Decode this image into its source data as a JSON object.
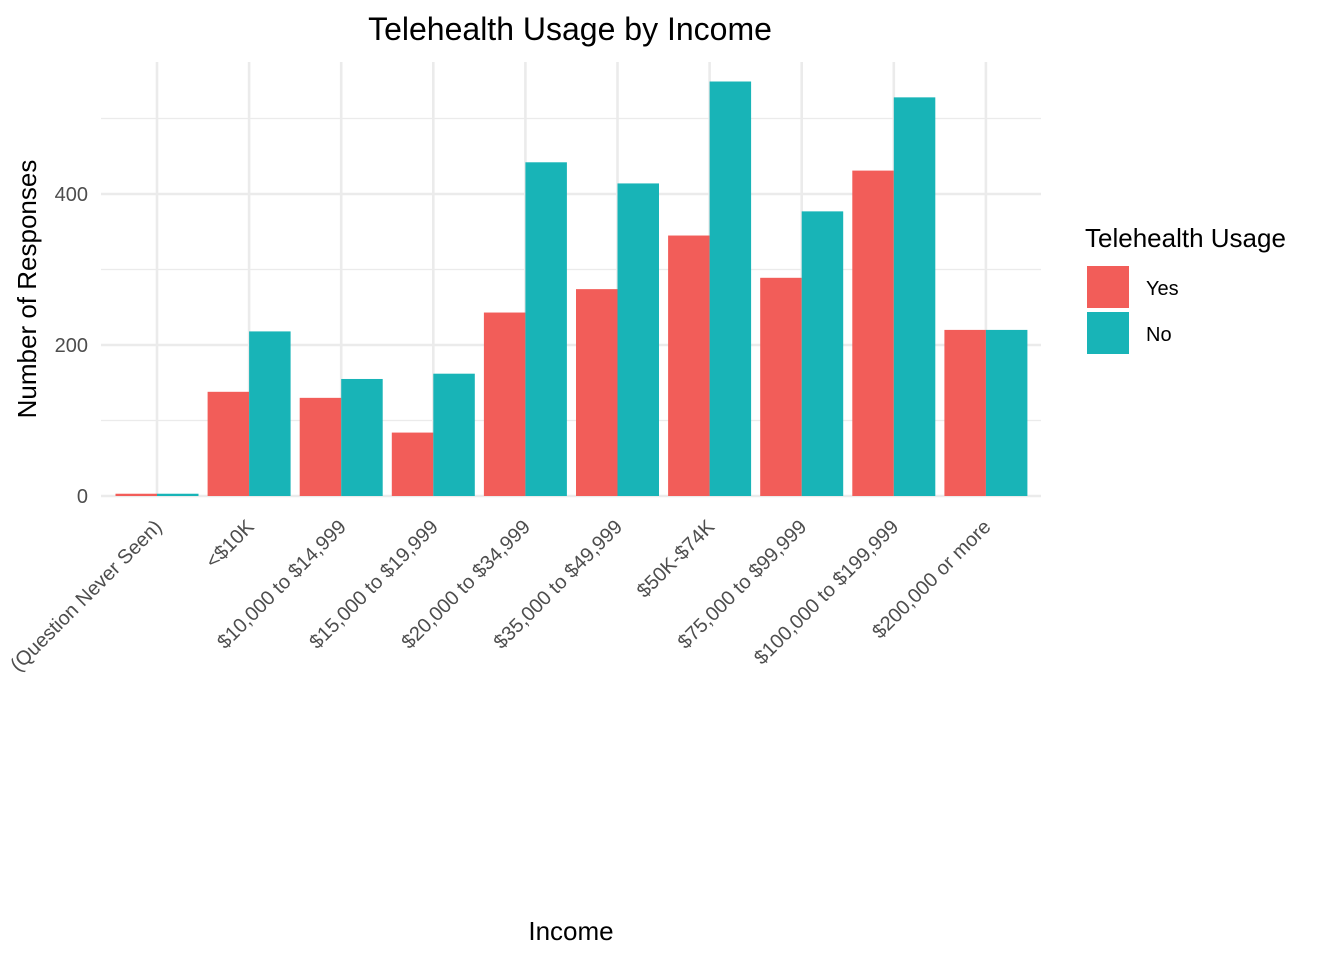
{
  "chart_data": {
    "type": "bar",
    "title": "Telehealth Usage by Income",
    "xlabel": "Income",
    "ylabel": "Number of Responses",
    "categories": [
      "(Question Never Seen)",
      "<$10K",
      "$10,000 to $14,999",
      "$15,000 to $19,999",
      "$20,000 to $34,999",
      "$35,000 to $49,999",
      "$50K-$74K",
      "$75,000 to $99,999",
      "$100,000 to $199,999",
      "$200,000 or more"
    ],
    "series": [
      {
        "name": "Yes",
        "color": "#F25D59",
        "values": [
          3,
          138,
          130,
          84,
          243,
          274,
          345,
          289,
          431,
          220
        ]
      },
      {
        "name": "No",
        "color": "#18B4B7",
        "values": [
          3,
          218,
          155,
          162,
          442,
          414,
          549,
          377,
          528,
          220
        ]
      }
    ],
    "yticks": [
      0,
      200,
      400
    ],
    "ylim": [
      0,
      575
    ],
    "grid": true,
    "legend": {
      "title": "Telehealth Usage",
      "position": "right"
    }
  }
}
